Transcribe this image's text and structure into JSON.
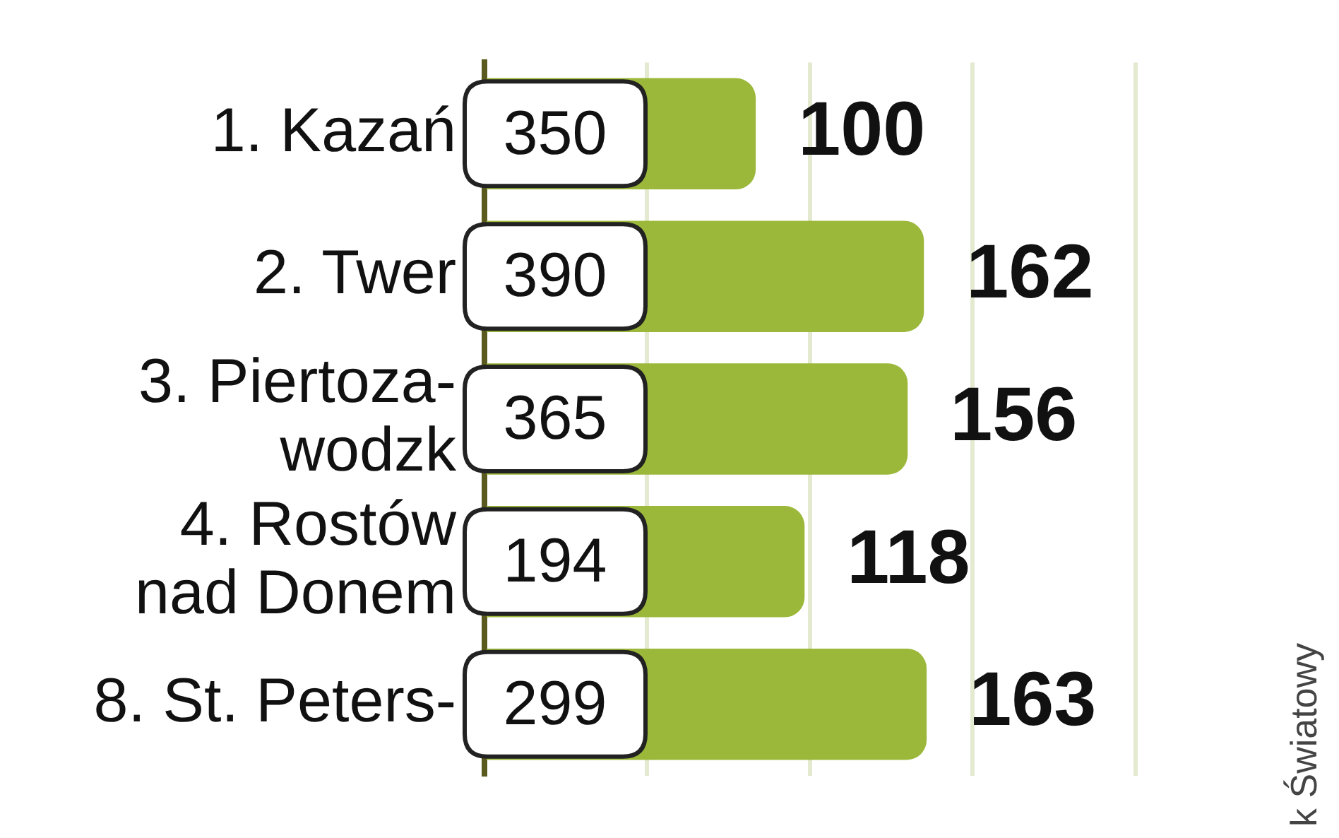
{
  "chart_data": {
    "type": "bar",
    "orientation": "horizontal",
    "categories": [
      "1. Kazań",
      "2. Twer",
      "3. Piertoza-\nwodzk",
      "4. Rostów\nnad Donem",
      "8. St. Peters-"
    ],
    "values": [
      100,
      162,
      156,
      118,
      163
    ],
    "color": "#9bb83a",
    "data_labels": true,
    "xlim": [
      0,
      315
    ],
    "xticks": [
      {
        "value": 0,
        "label": null
      },
      {
        "value": 60,
        "label": null
      },
      {
        "value": 120,
        "label": null
      },
      {
        "value": 180,
        "label": null
      },
      {
        "value": 240,
        "label": null
      }
    ],
    "grid": "x",
    "tick_labels": "y",
    "legend": false,
    "annotations": [
      {
        "text": "350",
        "y": "1. Kazań"
      },
      {
        "text": "390",
        "y": "2. Twer"
      },
      {
        "text": "365",
        "y": "3. Piertoza-\nwodzk"
      },
      {
        "text": "194",
        "y": "4. Rostów\nnad Donem"
      },
      {
        "text": "299",
        "y": "8. St. Peters-"
      },
      "k Światowy"
    ]
  }
}
